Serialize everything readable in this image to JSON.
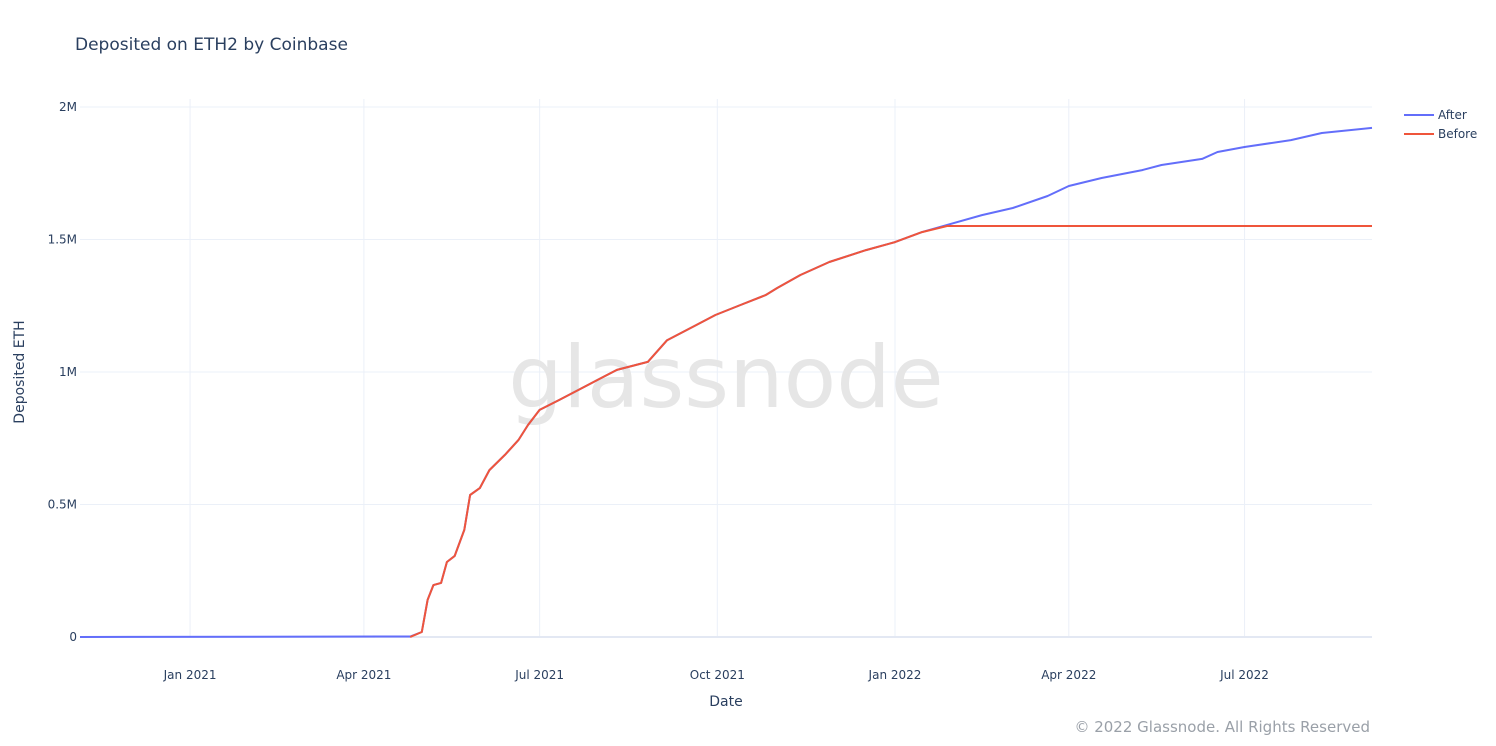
{
  "chart_data": {
    "type": "line",
    "title": "Deposited on ETH2 by Coinbase",
    "xlabel": "Date",
    "ylabel": "Deposited ETH",
    "xlim": [
      "2020-11-05",
      "2022-09-05"
    ],
    "ylim": [
      0,
      2000000
    ],
    "x_ticks": [
      {
        "date": "2021-01-01",
        "label": "Jan 2021"
      },
      {
        "date": "2021-04-01",
        "label": "Apr 2021"
      },
      {
        "date": "2021-07-01",
        "label": "Jul 2021"
      },
      {
        "date": "2021-10-01",
        "label": "Oct 2021"
      },
      {
        "date": "2022-01-01",
        "label": "Jan 2022"
      },
      {
        "date": "2022-04-01",
        "label": "Apr 2022"
      },
      {
        "date": "2022-07-01",
        "label": "Jul 2022"
      }
    ],
    "y_ticks": [
      {
        "value": 0,
        "label": "0"
      },
      {
        "value": 500000,
        "label": "0.5M"
      },
      {
        "value": 1000000,
        "label": "1M"
      },
      {
        "value": 1500000,
        "label": "1.5M"
      },
      {
        "value": 2000000,
        "label": "2M"
      }
    ],
    "grid": true,
    "legend_position": "top-right",
    "series": [
      {
        "name": "After",
        "color": "#636efa",
        "points": [
          [
            "2020-11-05",
            0
          ],
          [
            "2021-04-25",
            2000
          ],
          [
            "2021-05-01",
            19000
          ],
          [
            "2021-05-04",
            140000
          ],
          [
            "2021-05-07",
            196000
          ],
          [
            "2021-05-11",
            204000
          ],
          [
            "2021-05-14",
            283000
          ],
          [
            "2021-05-18",
            306000
          ],
          [
            "2021-05-23",
            404000
          ],
          [
            "2021-05-26",
            536000
          ],
          [
            "2021-05-31",
            562000
          ],
          [
            "2021-06-05",
            630000
          ],
          [
            "2021-06-13",
            687000
          ],
          [
            "2021-06-20",
            743000
          ],
          [
            "2021-06-25",
            800000
          ],
          [
            "2021-07-01",
            857000
          ],
          [
            "2021-07-11",
            894000
          ],
          [
            "2021-07-21",
            932000
          ],
          [
            "2021-07-31",
            970000
          ],
          [
            "2021-08-10",
            1008000
          ],
          [
            "2021-08-26",
            1038000
          ],
          [
            "2021-09-05",
            1120000
          ],
          [
            "2021-09-20",
            1177000
          ],
          [
            "2021-09-30",
            1215000
          ],
          [
            "2021-10-13",
            1253000
          ],
          [
            "2021-10-26",
            1290000
          ],
          [
            "2021-11-01",
            1317000
          ],
          [
            "2021-11-13",
            1366000
          ],
          [
            "2021-11-28",
            1415000
          ],
          [
            "2021-12-17",
            1460000
          ],
          [
            "2022-01-01",
            1490000
          ],
          [
            "2022-01-15",
            1528000
          ],
          [
            "2022-01-28",
            1555000
          ],
          [
            "2022-02-15",
            1592000
          ],
          [
            "2022-03-03",
            1619000
          ],
          [
            "2022-03-21",
            1664000
          ],
          [
            "2022-04-01",
            1702000
          ],
          [
            "2022-04-18",
            1732000
          ],
          [
            "2022-05-09",
            1762000
          ],
          [
            "2022-05-19",
            1781000
          ],
          [
            "2022-06-09",
            1804000
          ],
          [
            "2022-06-17",
            1830000
          ],
          [
            "2022-07-01",
            1849000
          ],
          [
            "2022-07-25",
            1875000
          ],
          [
            "2022-08-10",
            1902000
          ],
          [
            "2022-09-05",
            1921000
          ]
        ]
      },
      {
        "name": "Before",
        "color": "#ef553b",
        "points": [
          [
            "2021-04-25",
            0
          ],
          [
            "2021-05-01",
            19000
          ],
          [
            "2021-05-04",
            140000
          ],
          [
            "2021-05-07",
            196000
          ],
          [
            "2021-05-11",
            204000
          ],
          [
            "2021-05-14",
            283000
          ],
          [
            "2021-05-18",
            306000
          ],
          [
            "2021-05-23",
            404000
          ],
          [
            "2021-05-26",
            536000
          ],
          [
            "2021-05-31",
            562000
          ],
          [
            "2021-06-05",
            630000
          ],
          [
            "2021-06-13",
            687000
          ],
          [
            "2021-06-20",
            743000
          ],
          [
            "2021-06-25",
            800000
          ],
          [
            "2021-07-01",
            857000
          ],
          [
            "2021-07-11",
            894000
          ],
          [
            "2021-07-21",
            932000
          ],
          [
            "2021-07-31",
            970000
          ],
          [
            "2021-08-10",
            1008000
          ],
          [
            "2021-08-26",
            1038000
          ],
          [
            "2021-09-05",
            1120000
          ],
          [
            "2021-09-20",
            1177000
          ],
          [
            "2021-09-30",
            1215000
          ],
          [
            "2021-10-13",
            1253000
          ],
          [
            "2021-10-26",
            1290000
          ],
          [
            "2021-11-01",
            1317000
          ],
          [
            "2021-11-13",
            1366000
          ],
          [
            "2021-11-28",
            1415000
          ],
          [
            "2021-12-17",
            1460000
          ],
          [
            "2022-01-01",
            1490000
          ],
          [
            "2022-01-15",
            1528000
          ],
          [
            "2022-01-28",
            1551000
          ],
          [
            "2022-09-05",
            1551000
          ]
        ]
      }
    ]
  },
  "watermark": "glassnode",
  "copyright": "© 2022 Glassnode. All Rights Reserved"
}
